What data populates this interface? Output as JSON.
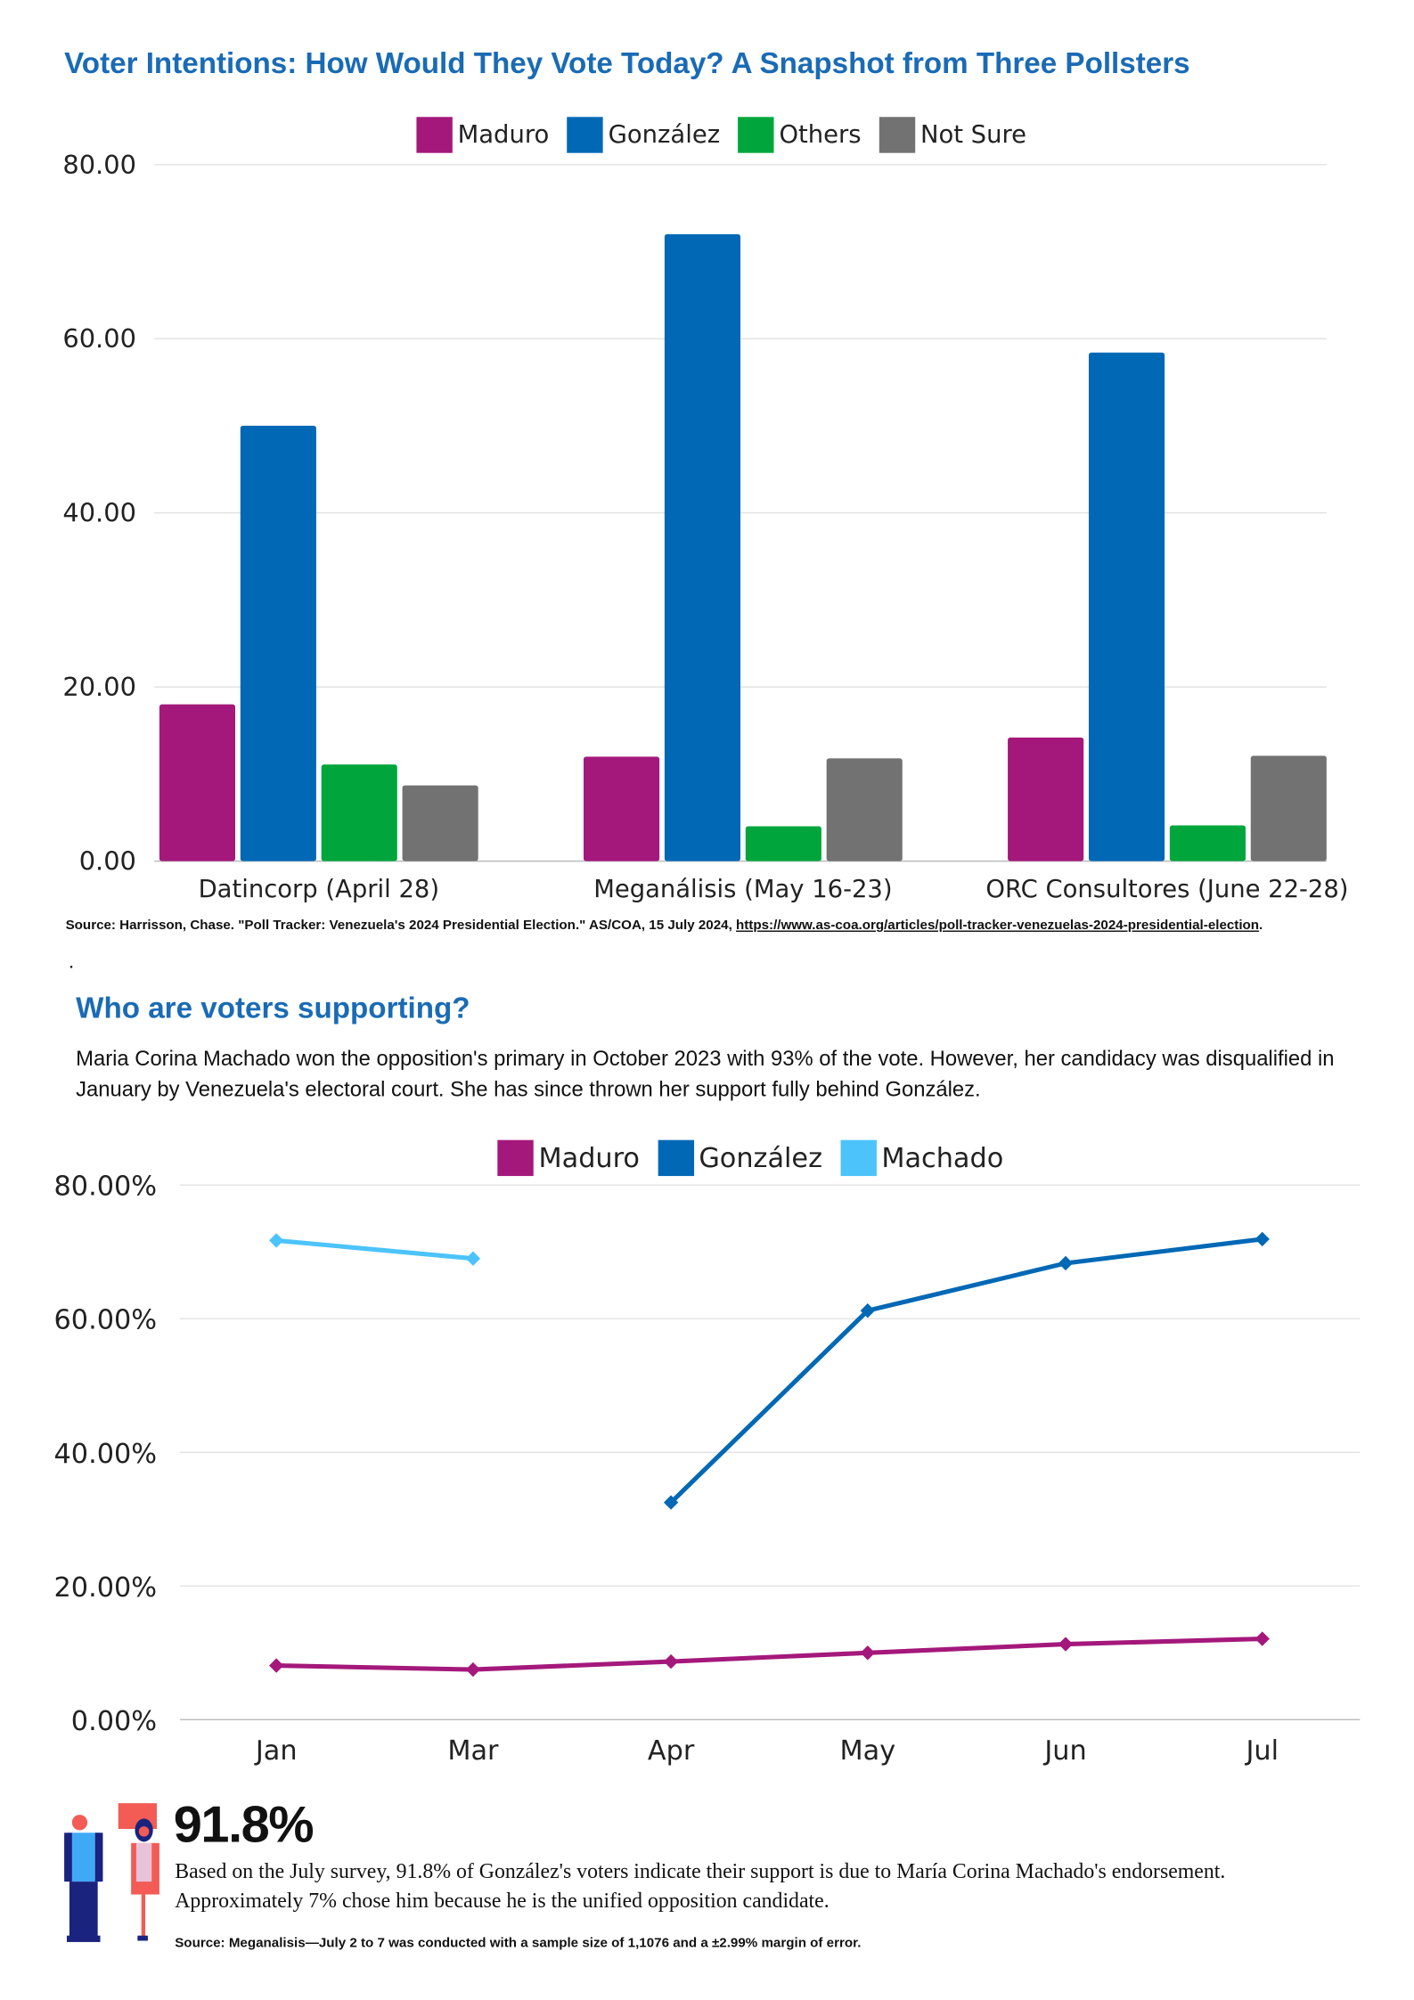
{
  "chart1": {
    "title": "Voter Intentions: How Would They Vote Today? A Snapshot from Three Pollsters",
    "chart_data": {
      "type": "bar",
      "categories": [
        "Datincorp (April 28)",
        "Meganálisis (May 16-23)",
        "ORC Consultores (June 22-28)"
      ],
      "series": [
        {
          "name": "Maduro",
          "color": "#a4187b",
          "values": [
            18,
            12,
            14.2
          ]
        },
        {
          "name": "González",
          "color": "#0068b5",
          "values": [
            50,
            72,
            58.4
          ]
        },
        {
          "name": "Others",
          "color": "#00a63c",
          "values": [
            11.1,
            4,
            4.1
          ]
        },
        {
          "name": "Not Sure",
          "color": "#727272",
          "values": [
            8.7,
            11.8,
            12.1
          ]
        }
      ],
      "ylim": [
        0,
        80
      ],
      "yticks": [
        "0.00",
        "20.00",
        "40.00",
        "60.00",
        "80.00"
      ],
      "grid": true,
      "legend": "top-center"
    },
    "source_text": "Source: Harrisson, Chase. \"Poll Tracker: Venezuela's 2024 Presidential Election.\" AS/COA, 15 July 2024, ",
    "source_link": "https://www.as-coa.org/articles/poll-tracker-venezuelas-2024-presidential-election",
    "source_end": ".",
    "dot": "."
  },
  "section2": {
    "heading": "Who are voters supporting?",
    "paragraph": "Maria Corina Machado won the opposition's primary in October 2023 with 93% of the vote. However, her candidacy was disqualified in January by Venezuela's electoral court. She has since thrown her support fully behind González."
  },
  "chart2": {
    "chart_data": {
      "type": "line",
      "categories": [
        "Jan",
        "Mar",
        "Apr",
        "May",
        "Jun",
        "Jul"
      ],
      "series": [
        {
          "name": "Maduro",
          "color": "#a4187b",
          "values": [
            8.1,
            7.5,
            8.7,
            10.0,
            11.3,
            12.1
          ]
        },
        {
          "name": "González",
          "color": "#0068b5",
          "values": [
            null,
            null,
            32.5,
            61.2,
            68.3,
            71.9
          ]
        },
        {
          "name": "Machado",
          "color": "#4cc3fa",
          "values": [
            71.7,
            69.0,
            null,
            null,
            null,
            null
          ]
        }
      ],
      "ylim": [
        0,
        80
      ],
      "yticks": [
        "0.00%",
        "20.00%",
        "40.00%",
        "60.00%",
        "80.00%"
      ],
      "grid": true,
      "legend": "top-center"
    }
  },
  "stat": {
    "value": "91.8%",
    "text": "Based on the July survey, 91.8% of González's voters indicate their support is due to María Corina Machado's endorsement. Approximately 7% chose him because he is the unified opposition candidate.",
    "source": "Source: Meganalisis—July 2 to 7 was conducted with a sample size of 1,1076 and a ±2.99% margin of error.",
    "icon": "people-illustration"
  }
}
